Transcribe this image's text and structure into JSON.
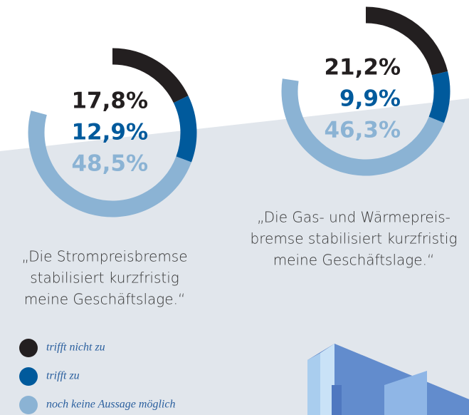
{
  "chart_data": [
    {
      "type": "donut",
      "values": [
        17.8,
        12.9,
        48.5
      ],
      "value_labels": [
        "17,8%",
        "12,9%",
        "48,5%"
      ],
      "colors": [
        "#231f20",
        "#005a9c",
        "#8bb3d4"
      ],
      "title": [
        "„Die Strompreisbremse",
        "stabilisiert kurzfristig",
        "meine Geschäftslage.“"
      ]
    },
    {
      "type": "donut",
      "values": [
        21.2,
        9.9,
        46.3
      ],
      "value_labels": [
        "21,2%",
        "9,9%",
        "46,3%"
      ],
      "colors": [
        "#231f20",
        "#005a9c",
        "#8bb3d4"
      ],
      "title": [
        "„Die Gas- und Wärmepreis-",
        "bremse stabilisiert kurzfristig",
        "meine Geschäftslage.“"
      ]
    }
  ],
  "legend": {
    "items": [
      "trifft nicht zu",
      "trifft zu",
      "noch keine Aussage möglich"
    ],
    "colors": [
      "#231f20",
      "#005a9c",
      "#8bb3d4"
    ]
  }
}
